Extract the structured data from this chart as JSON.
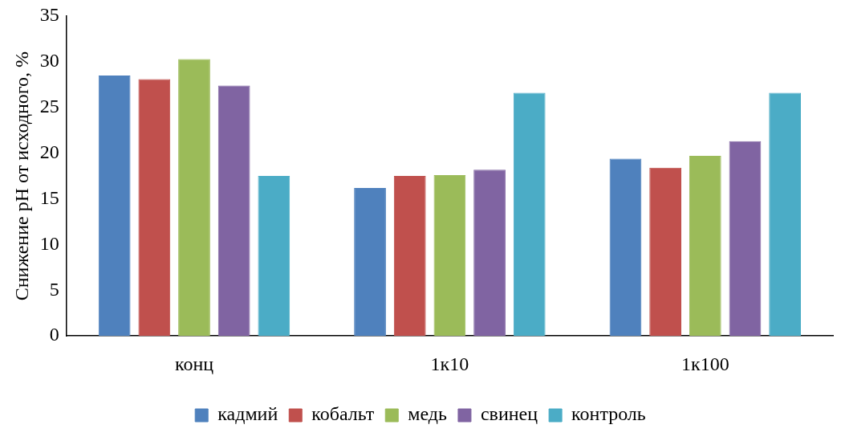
{
  "chart_data": {
    "type": "bar",
    "ylabel": "Снижение pH от исходного, %",
    "categories": [
      "конц",
      "1к10",
      "1к100"
    ],
    "series": [
      {
        "name": "кадмий",
        "color": "#4f81bd",
        "values": [
          28.5,
          16.2,
          19.4
        ]
      },
      {
        "name": "кобальт",
        "color": "#c0504d",
        "values": [
          28.1,
          17.5,
          18.4
        ]
      },
      {
        "name": "медь",
        "color": "#9bbb59",
        "values": [
          30.3,
          17.6,
          19.7
        ]
      },
      {
        "name": "свинец",
        "color": "#8064a2",
        "values": [
          27.4,
          18.2,
          21.3
        ]
      },
      {
        "name": "контроль",
        "color": "#4bacc6",
        "values": [
          17.5,
          26.6,
          26.6
        ]
      }
    ],
    "ylim": [
      0,
      35
    ],
    "yticks": [
      0,
      5,
      10,
      15,
      20,
      25,
      30,
      35
    ],
    "grid": false,
    "legend": "bottom"
  }
}
